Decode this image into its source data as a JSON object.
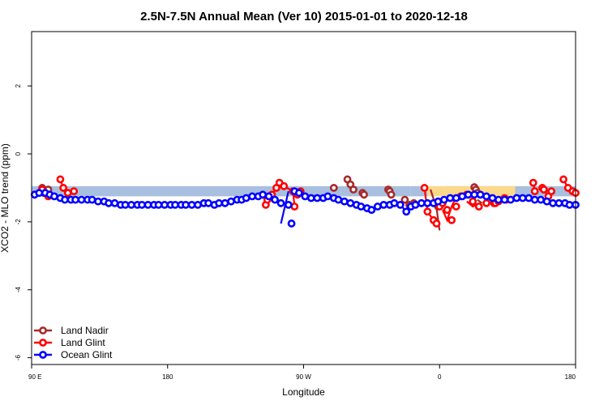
{
  "chart_data": {
    "type": "line",
    "title": "2.5N-7.5N Annual Mean (Ver 10)   2015-01-01 to 2020-12-18",
    "xlabel": "Longitude",
    "ylabel": "XCO2 - MLO trend (ppm)",
    "xlim": [
      0,
      360
    ],
    "ylim": [
      -6.2,
      3.6
    ],
    "xticks": [
      {
        "value": 0,
        "label": "90 E"
      },
      {
        "value": 90,
        "label": "180"
      },
      {
        "value": 180,
        "label": "90 W"
      },
      {
        "value": 270,
        "label": "0"
      },
      {
        "value": 360,
        "label": "90 E"
      }
    ],
    "xticks_extra": [
      {
        "value": 360,
        "label": "180"
      }
    ],
    "yticks": [
      -6,
      -4,
      -2,
      0,
      2
    ],
    "grid": false,
    "legend_position": "bottom-left",
    "background_bands": {
      "y_range": [
        -1.25,
        -0.95
      ],
      "blue_segments": [
        [
          0,
          251
        ],
        [
          273,
          360
        ]
      ],
      "land_blue_segments": [
        [
          251,
          262
        ]
      ],
      "yellow_segments": [
        [
          262,
          273
        ],
        [
          273,
          320
        ]
      ]
    },
    "series": [
      {
        "name": "Land Nadir",
        "color": "#a52a2a",
        "x": [
          7,
          8,
          11,
          200,
          209,
          211,
          213,
          219,
          220,
          236,
          237,
          238,
          247,
          250,
          253,
          269,
          293,
          294,
          295
        ],
        "y": [
          -1.0,
          -1.15,
          -1.05,
          -1.0,
          -0.75,
          -0.9,
          -1.05,
          -1.15,
          -1.2,
          -1.05,
          -1.1,
          -1.2,
          -1.35,
          -1.5,
          -1.45,
          -1.55,
          -0.98,
          -1.05,
          -1.15
        ],
        "segments": [
          [
            [
              7,
              -1.0
            ],
            [
              8,
              -1.15
            ]
          ],
          [
            [
              209,
              -0.75
            ],
            [
              211,
              -0.9
            ],
            [
              213,
              -1.05
            ]
          ],
          [
            [
              264,
              -1.05
            ],
            [
              268,
              -1.6
            ],
            [
              270,
              -2.25
            ]
          ],
          [
            [
              290,
              -1.2
            ],
            [
              293,
              -1.25
            ]
          ],
          [
            [
              295,
              -1.35
            ],
            [
              298,
              -1.45
            ]
          ]
        ]
      },
      {
        "name": "Land Glint",
        "color": "#ff0000",
        "x": [
          7,
          9,
          11,
          19,
          21,
          24,
          28,
          155,
          156,
          159,
          162,
          164,
          167,
          173,
          174,
          176,
          178,
          260,
          262,
          266,
          268,
          270,
          272,
          275,
          278,
          281,
          284,
          288,
          292,
          296,
          301,
          306,
          307,
          309,
          313,
          314,
          332,
          333,
          338,
          339,
          342,
          344,
          352,
          355,
          358,
          360
        ],
        "y": [
          -1.05,
          -1.15,
          -1.25,
          -0.75,
          -1.0,
          -1.15,
          -1.1,
          -1.5,
          -1.35,
          -1.2,
          -1.0,
          -0.85,
          -0.95,
          -1.1,
          -1.55,
          -1.2,
          -1.1,
          -1.0,
          -1.7,
          -1.95,
          -2.05,
          -1.55,
          -1.45,
          -1.65,
          -1.95,
          -1.55,
          -1.25,
          -1.2,
          -1.4,
          -1.55,
          -1.45,
          -1.45,
          -1.45,
          -1.4,
          -1.3,
          -1.35,
          -0.85,
          -1.1,
          -1.0,
          -1.05,
          -1.25,
          -1.1,
          -0.75,
          -1.0,
          -1.1,
          -1.15
        ],
        "segments": [
          [
            [
              7,
              -1.05
            ],
            [
              9,
              -1.15
            ],
            [
              11,
              -1.25
            ]
          ],
          [
            [
              19,
              -0.75
            ],
            [
              21,
              -1.0
            ],
            [
              24,
              -1.15
            ],
            [
              28,
              -1.1
            ]
          ],
          [
            [
              155,
              -1.5
            ],
            [
              156,
              -1.35
            ],
            [
              159,
              -1.2
            ],
            [
              162,
              -1.0
            ],
            [
              164,
              -0.85
            ],
            [
              167,
              -0.95
            ],
            [
              173,
              -1.1
            ],
            [
              174,
              -1.55
            ]
          ],
          [
            [
              260,
              -1.0
            ],
            [
              262,
              -1.7
            ],
            [
              266,
              -1.95
            ],
            [
              268,
              -2.05
            ]
          ],
          [
            [
              272,
              -1.65
            ],
            [
              275,
              -1.95
            ],
            [
              278,
              -1.55
            ],
            [
              281,
              -1.25
            ]
          ],
          [
            [
              288,
              -1.4
            ],
            [
              292,
              -1.55
            ],
            [
              296,
              -1.45
            ]
          ],
          [
            [
              332,
              -0.85
            ],
            [
              333,
              -1.1
            ]
          ],
          [
            [
              338,
              -1.0
            ],
            [
              339,
              -1.05
            ],
            [
              342,
              -1.25
            ]
          ],
          [
            [
              352,
              -0.75
            ],
            [
              355,
              -1.0
            ],
            [
              358,
              -1.1
            ],
            [
              360,
              -1.15
            ]
          ]
        ]
      },
      {
        "name": "Ocean Glint",
        "color": "#0000ff",
        "x": [
          2,
          5,
          9,
          12,
          15,
          19,
          22,
          26,
          29,
          33,
          37,
          40,
          44,
          48,
          51,
          55,
          59,
          62,
          66,
          70,
          73,
          77,
          81,
          84,
          88,
          92,
          95,
          99,
          102,
          106,
          110,
          114,
          117,
          121,
          124,
          128,
          132,
          136,
          139,
          142,
          146,
          150,
          153,
          157,
          161,
          165,
          170,
          172,
          174,
          177,
          181,
          185,
          189,
          193,
          196,
          200,
          203,
          207,
          211,
          215,
          218,
          222,
          225,
          229,
          233,
          237,
          240,
          244,
          248,
          251,
          254,
          258,
          262,
          266,
          269,
          273,
          277,
          281,
          285,
          289,
          293,
          297,
          301,
          305,
          309,
          313,
          317,
          321,
          325,
          329,
          333,
          337,
          341,
          345,
          349,
          353,
          356,
          360
        ],
        "y": [
          -1.2,
          -1.15,
          -1.15,
          -1.2,
          -1.25,
          -1.3,
          -1.35,
          -1.35,
          -1.35,
          -1.35,
          -1.35,
          -1.35,
          -1.4,
          -1.4,
          -1.45,
          -1.45,
          -1.5,
          -1.5,
          -1.5,
          -1.5,
          -1.5,
          -1.5,
          -1.5,
          -1.5,
          -1.5,
          -1.5,
          -1.5,
          -1.5,
          -1.5,
          -1.5,
          -1.5,
          -1.45,
          -1.45,
          -1.5,
          -1.45,
          -1.45,
          -1.4,
          -1.35,
          -1.35,
          -1.3,
          -1.25,
          -1.25,
          -1.2,
          -1.25,
          -1.35,
          -1.45,
          -1.5,
          -2.05,
          -1.1,
          -1.15,
          -1.25,
          -1.3,
          -1.3,
          -1.3,
          -1.25,
          -1.3,
          -1.35,
          -1.4,
          -1.45,
          -1.5,
          -1.55,
          -1.6,
          -1.65,
          -1.55,
          -1.5,
          -1.5,
          -1.45,
          -1.5,
          -1.7,
          -1.55,
          -1.5,
          -1.45,
          -1.45,
          -1.45,
          -1.4,
          -1.35,
          -1.3,
          -1.3,
          -1.25,
          -1.2,
          -1.2,
          -1.2,
          -1.25,
          -1.3,
          -1.35,
          -1.35,
          -1.35,
          -1.3,
          -1.3,
          -1.3,
          -1.35,
          -1.35,
          -1.4,
          -1.45,
          -1.45,
          -1.45,
          -1.5,
          -1.5
        ],
        "segments_break_after": [
          46,
          47
        ],
        "jump": [
          [
            165,
            -2.05
          ],
          [
            170,
            -1.1
          ]
        ]
      }
    ]
  }
}
